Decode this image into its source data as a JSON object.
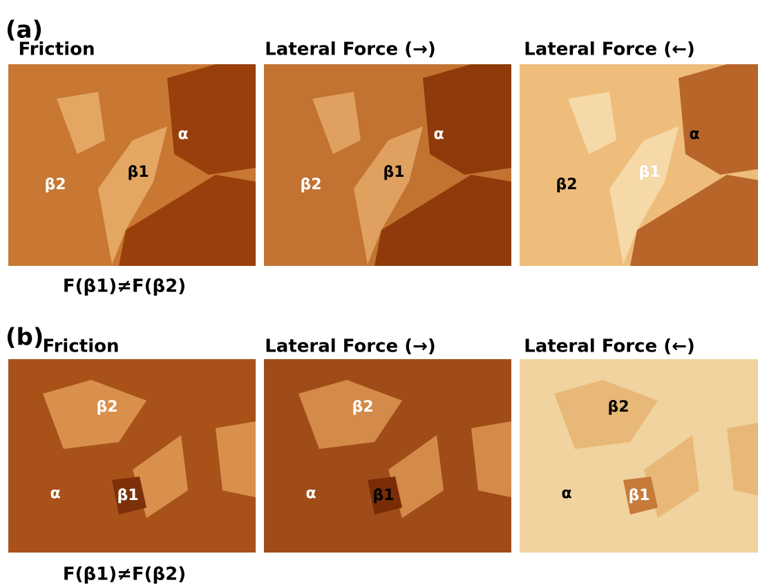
{
  "panels": [
    {
      "label": "(a)",
      "caption": "F(β1)≠F(β2)",
      "images": [
        {
          "title": "Friction",
          "labels": [
            "α",
            "β1",
            "β2"
          ]
        },
        {
          "title": "Lateral Force (→)",
          "labels": [
            "α",
            "β1",
            "β2"
          ]
        },
        {
          "title": "Lateral Force (←)",
          "labels": [
            "α",
            "β1",
            "β2"
          ]
        }
      ]
    },
    {
      "label": "(b)",
      "caption": "F(β1)≠F(β2)",
      "images": [
        {
          "title": "Friction",
          "labels": [
            "β2",
            "α",
            "β1"
          ]
        },
        {
          "title": "Lateral Force (→)",
          "labels": [
            "β2",
            "α",
            "β1"
          ]
        },
        {
          "title": "Lateral Force (←)",
          "labels": [
            "β2",
            "α",
            "β1"
          ]
        }
      ]
    }
  ]
}
